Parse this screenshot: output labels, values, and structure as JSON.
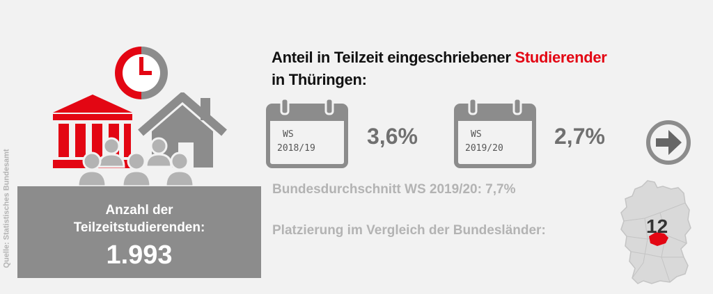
{
  "source": "Quelle: Statistisches Bundesamt",
  "count": {
    "label_line1": "Anzahl der",
    "label_line2": "Teilzeitstudierenden:",
    "value": "1.993"
  },
  "headline": {
    "part1": "Anteil in Teilzeit eingeschriebener ",
    "accent": "Studierender",
    "part2": "in Thüringen:"
  },
  "semesters": [
    {
      "term": "WS",
      "year": "2018/19",
      "share": "3,6%"
    },
    {
      "term": "WS",
      "year": "2019/20",
      "share": "2,7%"
    }
  ],
  "federal_average": "Bundesdurchschnitt WS 2019/20: 7,7%",
  "ranking_label": "Platzierung im Vergleich der Bundesländer:",
  "ranking_value": "12",
  "colors": {
    "accent": "#e30613",
    "icon_gray": "#8c8c8c",
    "light_gray": "#b3b3b3"
  },
  "icons": [
    "clock-icon",
    "university-building-icon",
    "house-icon",
    "people-group-icon",
    "calendar-icon",
    "arrow-right-circle-icon",
    "germany-map-icon"
  ]
}
